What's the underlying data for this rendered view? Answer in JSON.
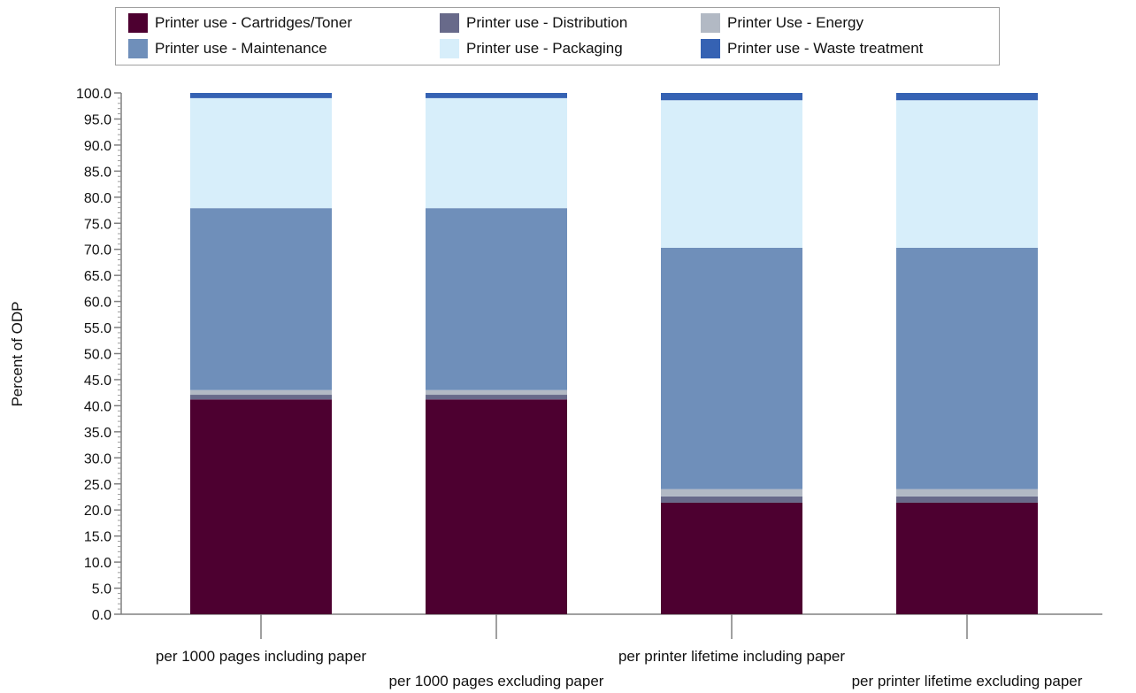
{
  "chart_data": {
    "type": "bar",
    "stacked": true,
    "ylabel": "Percent of ODP",
    "ylim": [
      0,
      100
    ],
    "yticks": [
      "0.0",
      "5.0",
      "10.0",
      "15.0",
      "20.0",
      "25.0",
      "30.0",
      "35.0",
      "40.0",
      "45.0",
      "50.0",
      "55.0",
      "60.0",
      "65.0",
      "70.0",
      "75.0",
      "80.0",
      "85.0",
      "90.0",
      "95.0",
      "100.0"
    ],
    "categories": [
      "per 1000 pages including paper",
      "per 1000 pages excluding paper",
      "per printer lifetime including paper",
      "per printer lifetime excluding paper"
    ],
    "legend_placement": "top",
    "series": [
      {
        "name": "Printer use - Cartridges/Toner",
        "color": "#4d0030",
        "values": [
          41.2,
          41.2,
          21.4,
          21.4
        ]
      },
      {
        "name": "Printer use - Distribution",
        "color": "#686a8a",
        "values": [
          0.9,
          0.9,
          1.2,
          1.2
        ]
      },
      {
        "name": "Printer Use - Energy",
        "color": "#b2b9c4",
        "values": [
          0.9,
          0.9,
          1.4,
          1.4
        ]
      },
      {
        "name": "Printer use - Maintenance",
        "color": "#6f8fba",
        "values": [
          34.9,
          34.9,
          46.3,
          46.3
        ]
      },
      {
        "name": "Printer use - Packaging",
        "color": "#d7eefa",
        "values": [
          21.1,
          21.1,
          28.3,
          28.3
        ]
      },
      {
        "name": "Printer use - Waste treatment",
        "color": "#3562b3",
        "values": [
          1.0,
          1.0,
          1.4,
          1.4
        ]
      }
    ]
  }
}
